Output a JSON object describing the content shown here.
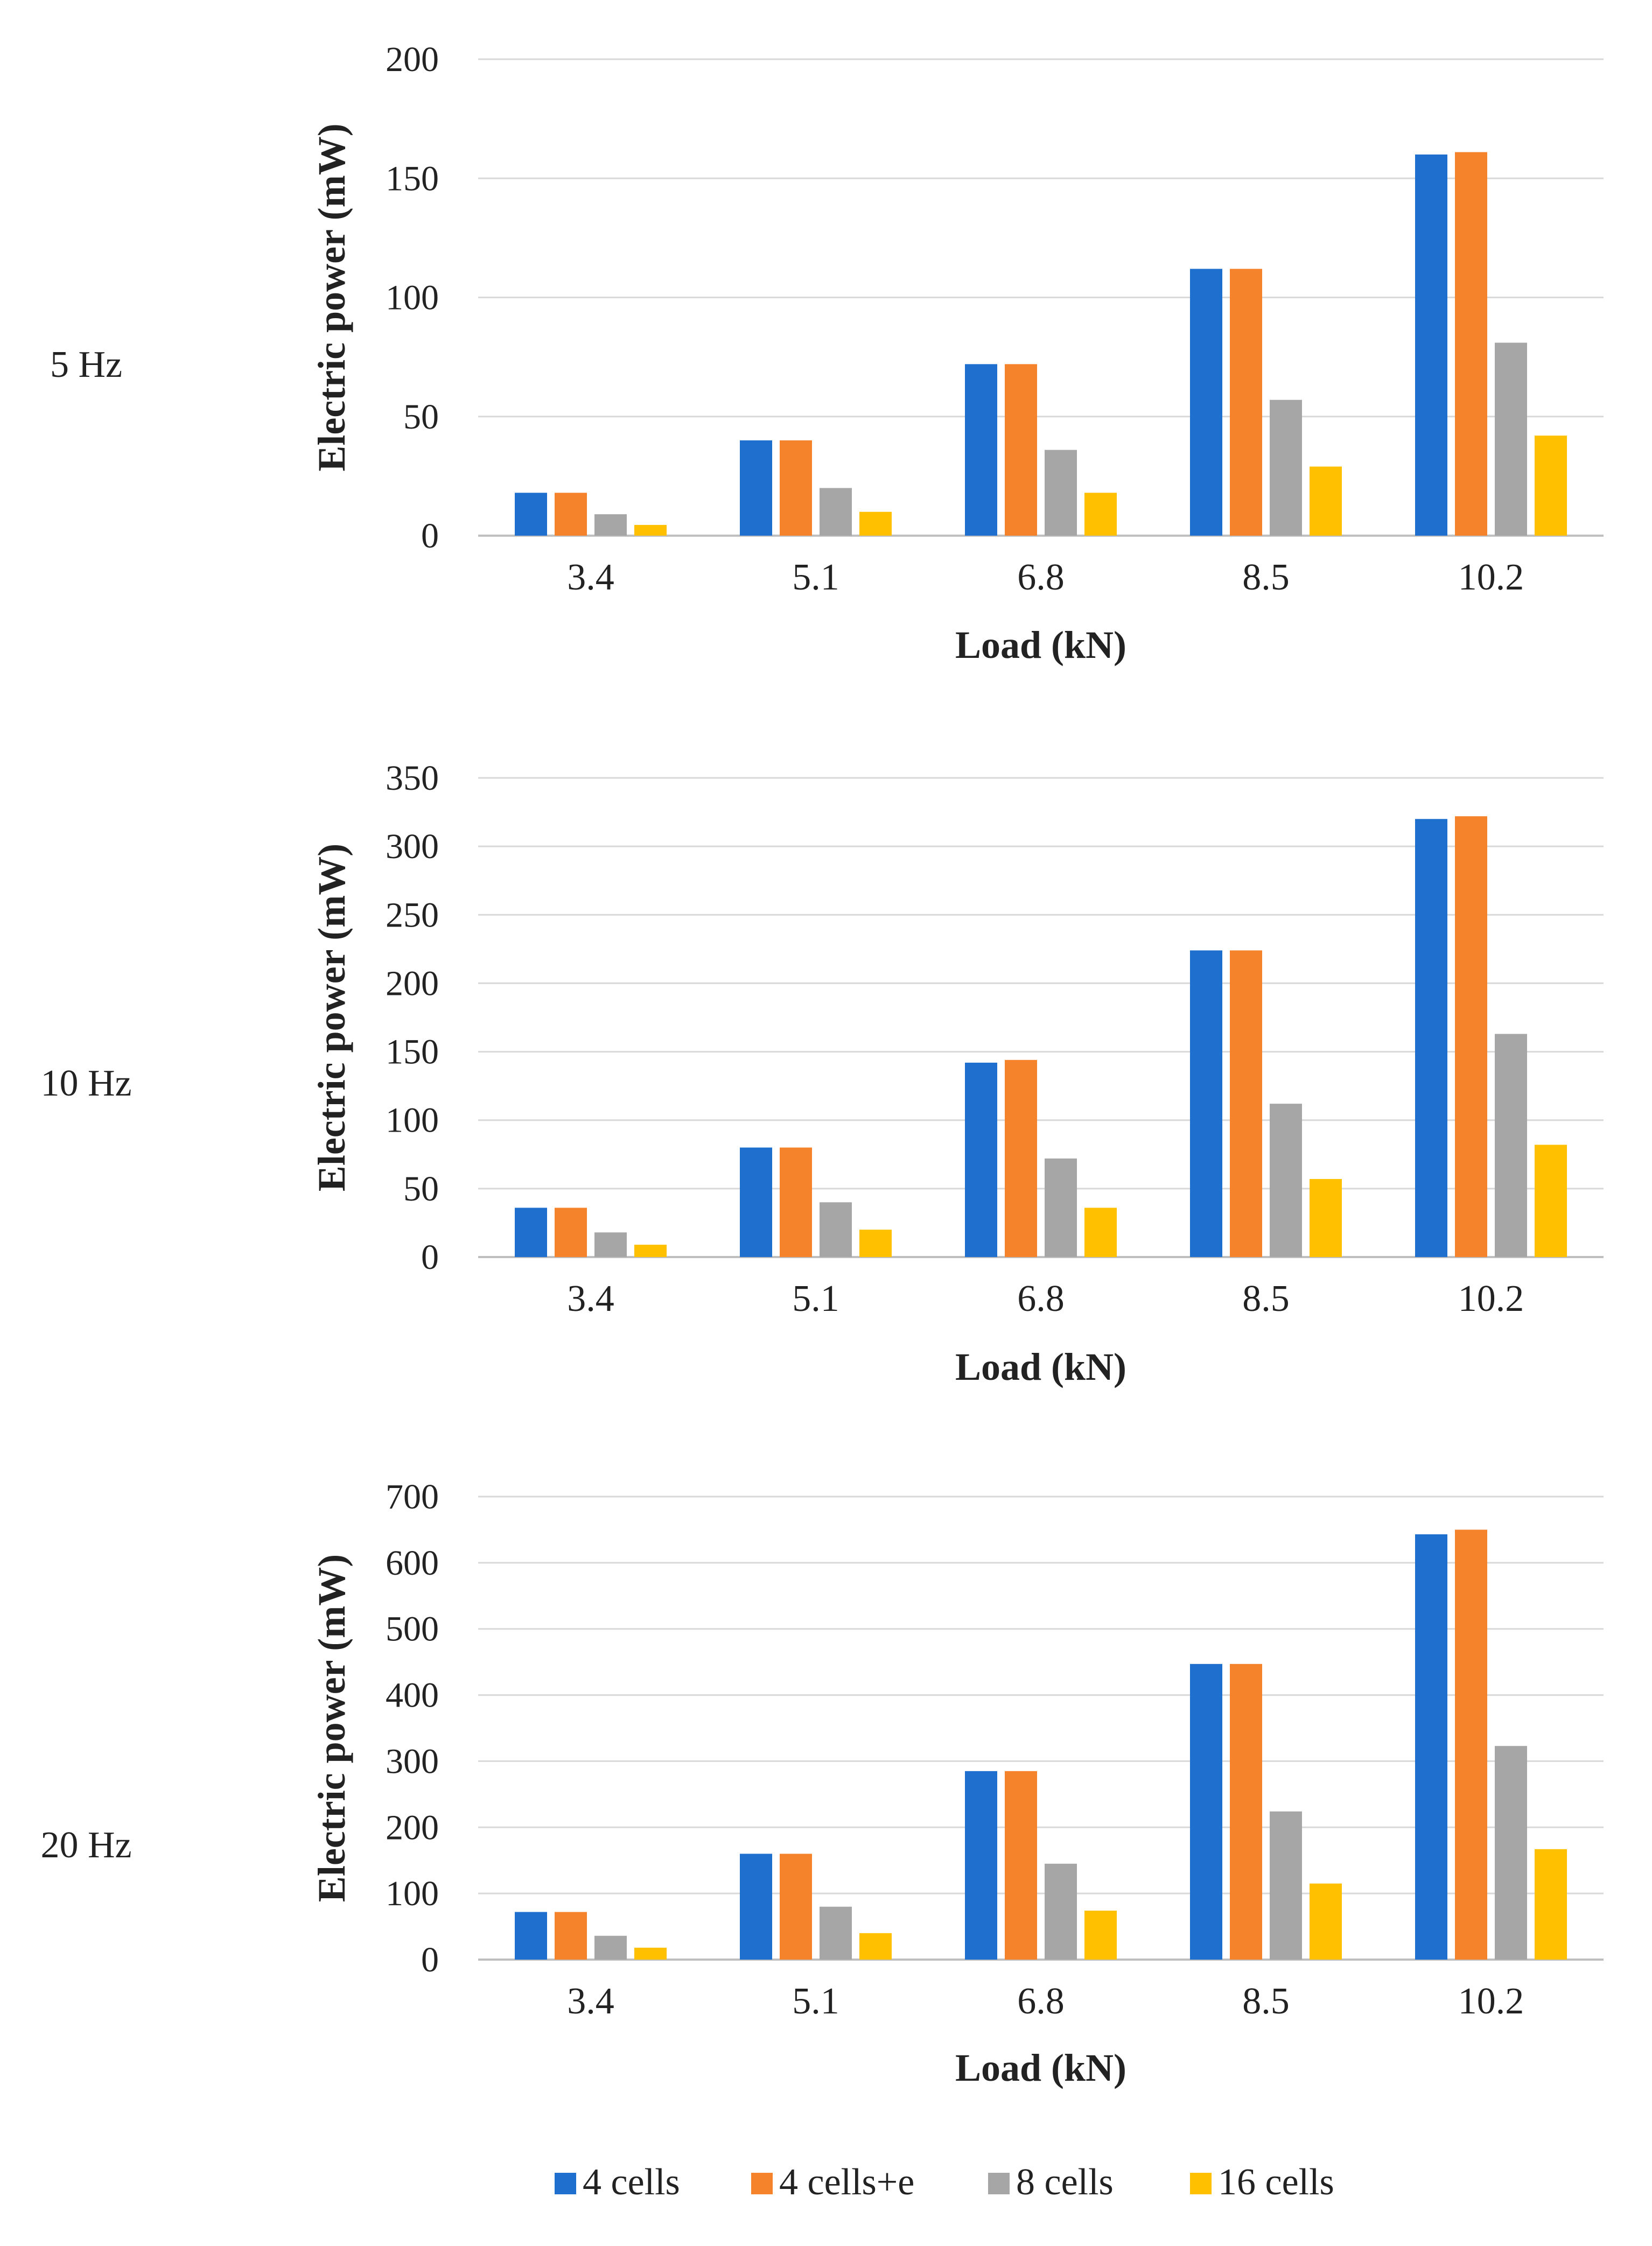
{
  "series_names": [
    "4 cells",
    "4 cells+e",
    "8 cells",
    "16 cells"
  ],
  "colors": {
    "4 cells": "#1f6fcf",
    "4 cells+e": "#f5832b",
    "8 cells": "#a6a6a6",
    "16 cells": "#ffc000",
    "grid": "#d9d9d9",
    "axis": "#bfbfbf",
    "text": "#222222"
  },
  "chart_data": [
    {
      "type": "bar",
      "panel_label": "5 Hz",
      "xlabel": "Load (kN)",
      "ylabel": "Electric power (mW)",
      "categories": [
        "3.4",
        "5.1",
        "6.8",
        "8.5",
        "10.2"
      ],
      "ylim": [
        0,
        200
      ],
      "yticks": [
        0,
        50,
        100,
        150,
        200
      ],
      "grid": true,
      "series": [
        {
          "name": "4 cells",
          "values": [
            18,
            40,
            72,
            112,
            160
          ]
        },
        {
          "name": "4 cells+e",
          "values": [
            18,
            40,
            72,
            112,
            161
          ]
        },
        {
          "name": "8 cells",
          "values": [
            9,
            20,
            36,
            57,
            81
          ]
        },
        {
          "name": "16 cells",
          "values": [
            4.5,
            10,
            18,
            29,
            42
          ]
        }
      ]
    },
    {
      "type": "bar",
      "panel_label": "10 Hz",
      "xlabel": "Load (kN)",
      "ylabel": "Electric power (mW)",
      "categories": [
        "3.4",
        "5.1",
        "6.8",
        "8.5",
        "10.2"
      ],
      "ylim": [
        0,
        350
      ],
      "yticks": [
        0,
        50,
        100,
        150,
        200,
        250,
        300,
        350
      ],
      "grid": true,
      "series": [
        {
          "name": "4 cells",
          "values": [
            36,
            80,
            142,
            224,
            320
          ]
        },
        {
          "name": "4 cells+e",
          "values": [
            36,
            80,
            144,
            224,
            322
          ]
        },
        {
          "name": "8 cells",
          "values": [
            18,
            40,
            72,
            112,
            163
          ]
        },
        {
          "name": "16 cells",
          "values": [
            9,
            20,
            36,
            57,
            82
          ]
        }
      ]
    },
    {
      "type": "bar",
      "panel_label": "20 Hz",
      "xlabel": "Load (kN)",
      "ylabel": "Electric power (mW)",
      "categories": [
        "3.4",
        "5.1",
        "6.8",
        "8.5",
        "10.2"
      ],
      "ylim": [
        0,
        700
      ],
      "yticks": [
        0,
        100,
        200,
        300,
        400,
        500,
        600,
        700
      ],
      "grid": true,
      "series": [
        {
          "name": "4 cells",
          "values": [
            72,
            160,
            285,
            447,
            643
          ]
        },
        {
          "name": "4 cells+e",
          "values": [
            72,
            160,
            285,
            447,
            650
          ]
        },
        {
          "name": "8 cells",
          "values": [
            36,
            80,
            145,
            224,
            323
          ]
        },
        {
          "name": "16 cells",
          "values": [
            18,
            40,
            74,
            115,
            167
          ]
        }
      ]
    }
  ],
  "legend": {
    "position": "bottom-center",
    "entries": [
      "4 cells",
      "4 cells+e",
      "8 cells",
      "16 cells"
    ]
  }
}
